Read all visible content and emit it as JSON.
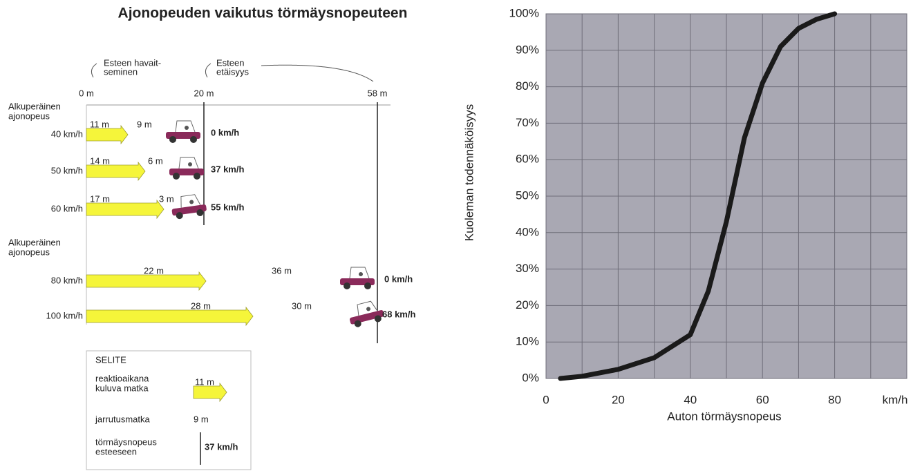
{
  "diagram": {
    "title": "Ajonopeuden vaikutus törmäysnopeuteen",
    "marker_notes": [
      [
        "Esteen havait-",
        "seminen"
      ],
      [
        "Esteen",
        "etäisyys"
      ]
    ],
    "distance_marks": [
      "0 m",
      "20 m",
      "58 m"
    ],
    "groups": [
      {
        "label": [
          "Alkuperäinen",
          "ajonopeus"
        ],
        "rows": [
          {
            "speed": "40 km/h",
            "reaction": "11 m",
            "braking": "9 m",
            "impact": "0 km/h"
          },
          {
            "speed": "50 km/h",
            "reaction": "14 m",
            "braking": "6 m",
            "impact": "37 km/h"
          },
          {
            "speed": "60 km/h",
            "reaction": "17 m",
            "braking": "3 m",
            "impact": "55 km/h"
          }
        ]
      },
      {
        "label": [
          "Alkuperäinen",
          "ajonopeus"
        ],
        "rows": [
          {
            "speed": "80 km/h",
            "reaction": "22 m",
            "braking": "36 m",
            "impact": "0 km/h"
          },
          {
            "speed": "100 km/h",
            "reaction": "28 m",
            "braking": "30 m",
            "impact": "68 km/h"
          }
        ]
      }
    ],
    "legend": {
      "title": "SELITE",
      "items": [
        {
          "label": [
            "reaktioaikana",
            "kuluva matka"
          ],
          "sample": "11 m"
        },
        {
          "label": [
            "jarrutusmatka"
          ],
          "sample": "9 m"
        },
        {
          "label": [
            "törmäysnopeus",
            "esteeseen"
          ],
          "sample": "37 km/h"
        }
      ]
    }
  },
  "chart_data": {
    "type": "line",
    "x_label": "Auton törmäysnopeus",
    "x_unit": "km/h",
    "y_label": "Kuoleman todennäköisyys",
    "x": [
      4,
      10,
      20,
      30,
      40,
      45,
      50,
      55,
      60,
      65,
      70,
      75,
      80
    ],
    "series": [
      {
        "color": "#1a1a1a",
        "values": [
          0,
          0.6,
          2.5,
          5.7,
          12,
          24,
          43,
          66,
          81,
          91,
          96,
          98.5,
          100
        ]
      }
    ],
    "xlim": [
      0,
      100
    ],
    "ylim": [
      0,
      100
    ],
    "xticks": [
      0,
      20,
      40,
      60,
      80
    ],
    "x_minor_grid": [
      10,
      30,
      50,
      70,
      90,
      100
    ],
    "yticks": [
      {
        "value": 0,
        "label": "0%"
      },
      {
        "value": 10,
        "label": "10%"
      },
      {
        "value": 20,
        "label": "20%"
      },
      {
        "value": 30,
        "label": "30%"
      },
      {
        "value": 40,
        "label": "40%"
      },
      {
        "value": 50,
        "label": "50%"
      },
      {
        "value": 60,
        "label": "60%"
      },
      {
        "value": 70,
        "label": "70%"
      },
      {
        "value": 80,
        "label": "80%"
      },
      {
        "value": 90,
        "label": "90%"
      },
      {
        "value": 100,
        "label": "100%"
      }
    ],
    "grid": true,
    "plot_background": "#a9a8b3"
  }
}
